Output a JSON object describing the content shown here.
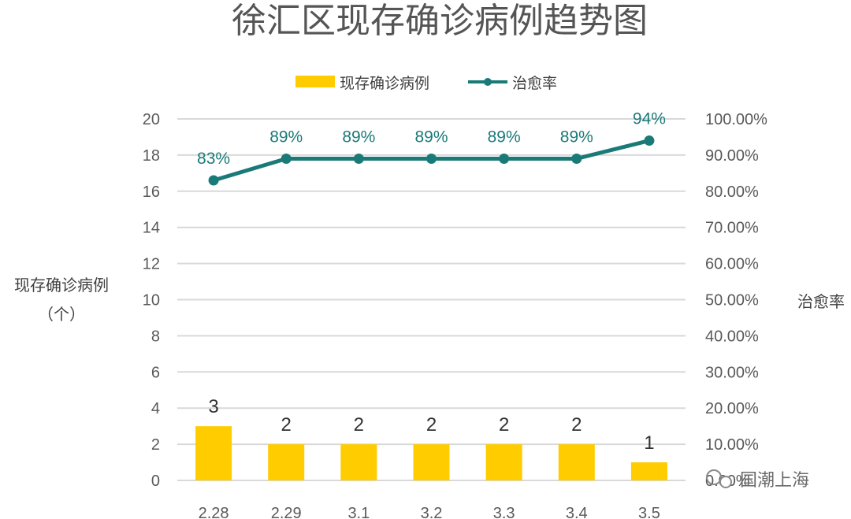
{
  "watermark": "国潮上海",
  "colors": {
    "bar": "#FFCC00",
    "line": "#1A7A78",
    "grid": "#D9D9D9",
    "text": "#595959"
  },
  "chart_data": {
    "type": "bar",
    "title": "徐汇区现存确诊病例趋势图",
    "categories": [
      "2.28",
      "2.29",
      "3.1",
      "3.2",
      "3.3",
      "3.4",
      "3.5"
    ],
    "series": [
      {
        "name": "现存确诊病例",
        "type": "bar",
        "axis": "left",
        "values": [
          3,
          2,
          2,
          2,
          2,
          2,
          1
        ],
        "labels": [
          "3",
          "2",
          "2",
          "2",
          "2",
          "2",
          "1"
        ]
      },
      {
        "name": "治愈率",
        "type": "line",
        "axis": "right",
        "values": [
          0.83,
          0.89,
          0.89,
          0.89,
          0.89,
          0.89,
          0.94
        ],
        "labels": [
          "83%",
          "89%",
          "89%",
          "89%",
          "89%",
          "89%",
          "94%"
        ]
      }
    ],
    "ylabel_left": "现存确诊病例",
    "ylabel_left_unit": "（个）",
    "ylabel_right": "治愈率",
    "ylim_left": [
      0,
      20
    ],
    "yticks_left": [
      "0",
      "2",
      "4",
      "6",
      "8",
      "10",
      "12",
      "14",
      "16",
      "18",
      "20"
    ],
    "ylim_right": [
      0,
      1
    ],
    "yticks_right": [
      "0.00%",
      "10.00%",
      "20.00%",
      "30.00%",
      "40.00%",
      "50.00%",
      "60.00%",
      "70.00%",
      "80.00%",
      "90.00%",
      "100.00%"
    ],
    "grid": true,
    "legend_position": "top"
  }
}
